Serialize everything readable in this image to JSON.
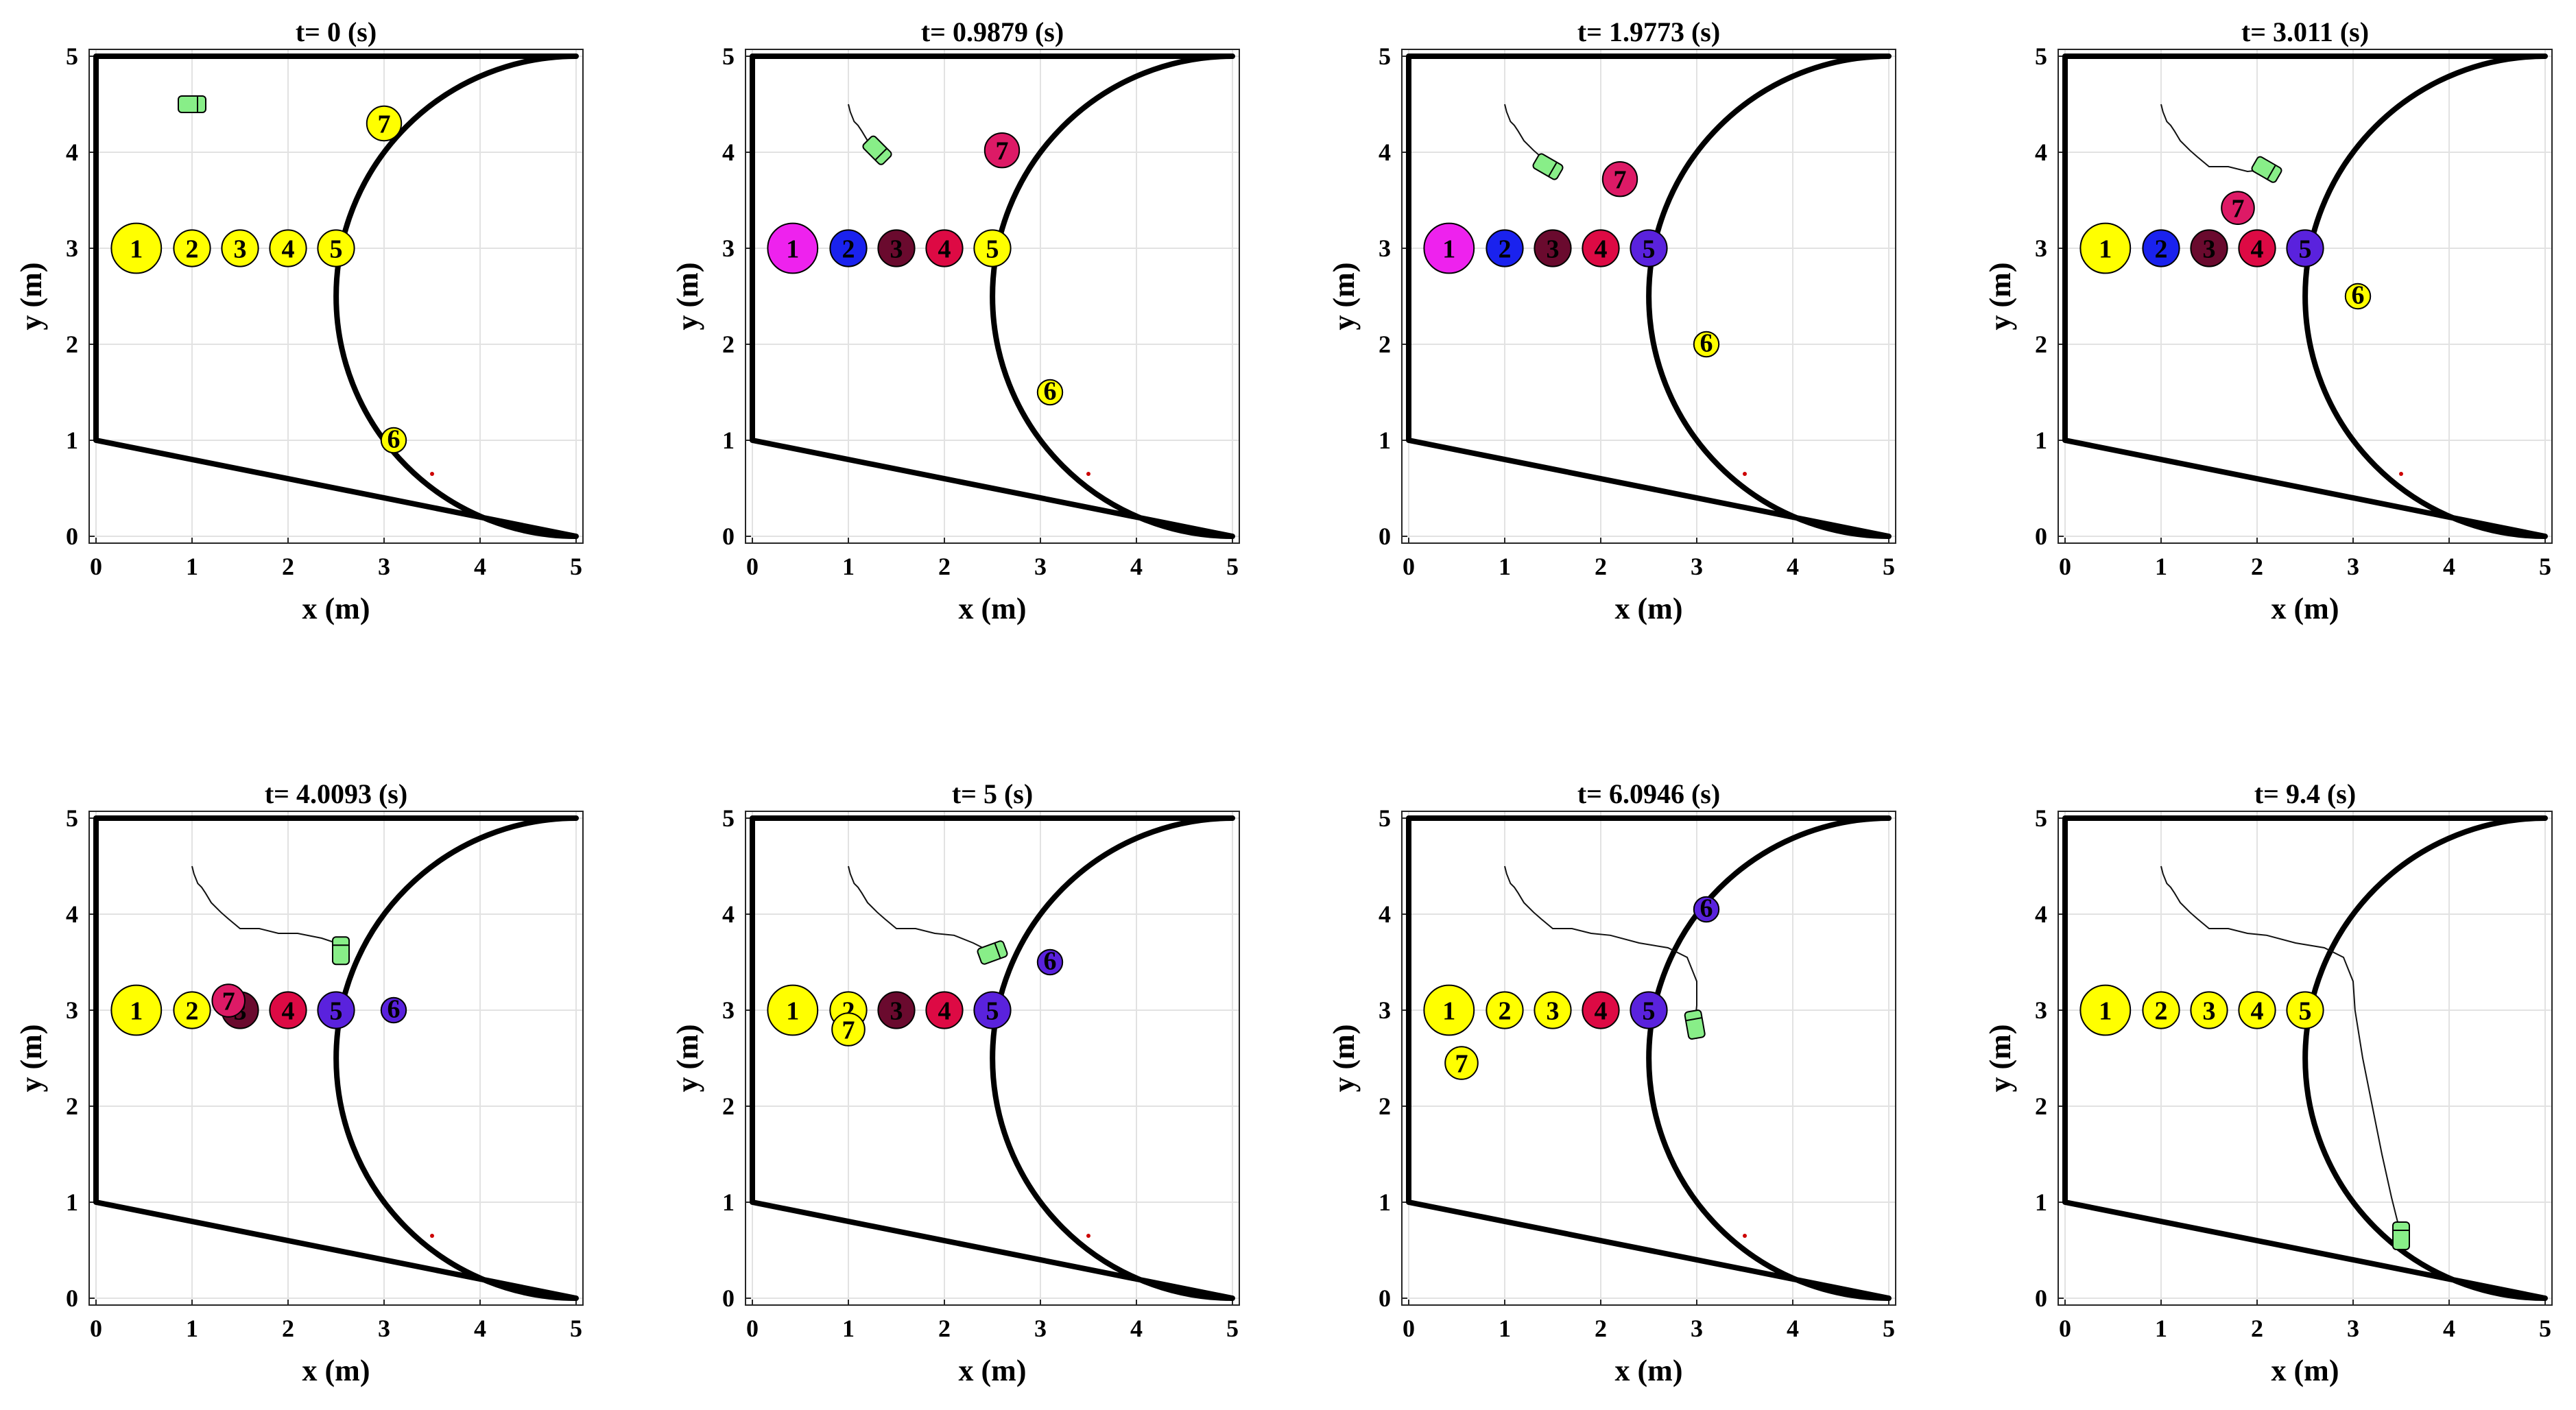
{
  "chart_data": [
    {
      "type": "scatter",
      "title": "t= 0 (s)",
      "xlabel": "x (m)",
      "ylabel": "y (m)",
      "xlim": [
        0,
        5
      ],
      "ylim": [
        0,
        5
      ],
      "xticks": [
        0,
        1,
        2,
        3,
        4,
        5
      ],
      "yticks": [
        0,
        1,
        2,
        3,
        4,
        5
      ],
      "grid": true,
      "objects": [
        {
          "label": "1",
          "x": 0.42,
          "y": 3.0,
          "r": 0.26,
          "color": "#ffff00"
        },
        {
          "label": "2",
          "x": 1.0,
          "y": 3.0,
          "r": 0.19,
          "color": "#ffff00"
        },
        {
          "label": "3",
          "x": 1.5,
          "y": 3.0,
          "r": 0.19,
          "color": "#ffff00"
        },
        {
          "label": "4",
          "x": 2.0,
          "y": 3.0,
          "r": 0.19,
          "color": "#ffff00"
        },
        {
          "label": "5",
          "x": 2.5,
          "y": 3.0,
          "r": 0.19,
          "color": "#ffff00"
        },
        {
          "label": "6",
          "x": 3.1,
          "y": 1.0,
          "r": 0.13,
          "color": "#ffff00"
        },
        {
          "label": "7",
          "x": 3.0,
          "y": 4.3,
          "r": 0.18,
          "color": "#ffff00"
        }
      ],
      "robot": {
        "x": 1.0,
        "y": 4.5,
        "angle": 0
      },
      "trajectory": []
    },
    {
      "type": "scatter",
      "title": "t= 0.9879 (s)",
      "xlabel": "x (m)",
      "ylabel": "y (m)",
      "xlim": [
        0,
        5
      ],
      "ylim": [
        0,
        5
      ],
      "xticks": [
        0,
        1,
        2,
        3,
        4,
        5
      ],
      "yticks": [
        0,
        1,
        2,
        3,
        4,
        5
      ],
      "grid": true,
      "objects": [
        {
          "label": "1",
          "x": 0.42,
          "y": 3.0,
          "r": 0.26,
          "color": "#ee22ee"
        },
        {
          "label": "2",
          "x": 1.0,
          "y": 3.0,
          "r": 0.19,
          "color": "#1a22ee"
        },
        {
          "label": "3",
          "x": 1.5,
          "y": 3.0,
          "r": 0.19,
          "color": "#6a0a2e"
        },
        {
          "label": "4",
          "x": 2.0,
          "y": 3.0,
          "r": 0.19,
          "color": "#dd0a44"
        },
        {
          "label": "5",
          "x": 2.5,
          "y": 3.0,
          "r": 0.19,
          "color": "#ffff00"
        },
        {
          "label": "6",
          "x": 3.1,
          "y": 1.5,
          "r": 0.13,
          "color": "#ffff00"
        },
        {
          "label": "7",
          "x": 2.6,
          "y": 4.02,
          "r": 0.18,
          "color": "#dd1a66"
        }
      ],
      "robot": {
        "x": 1.3,
        "y": 4.02,
        "angle": -45
      },
      "trajectory": [
        [
          1.0,
          4.5
        ],
        [
          1.02,
          4.42
        ],
        [
          1.06,
          4.32
        ],
        [
          1.1,
          4.28
        ],
        [
          1.14,
          4.22
        ],
        [
          1.2,
          4.12
        ],
        [
          1.3,
          4.02
        ]
      ]
    },
    {
      "type": "scatter",
      "title": "t= 1.9773 (s)",
      "xlabel": "x (m)",
      "ylabel": "y (m)",
      "xlim": [
        0,
        5
      ],
      "ylim": [
        0,
        5
      ],
      "xticks": [
        0,
        1,
        2,
        3,
        4,
        5
      ],
      "yticks": [
        0,
        1,
        2,
        3,
        4,
        5
      ],
      "grid": true,
      "objects": [
        {
          "label": "1",
          "x": 0.42,
          "y": 3.0,
          "r": 0.26,
          "color": "#ee22ee"
        },
        {
          "label": "2",
          "x": 1.0,
          "y": 3.0,
          "r": 0.19,
          "color": "#1a22ee"
        },
        {
          "label": "3",
          "x": 1.5,
          "y": 3.0,
          "r": 0.19,
          "color": "#6a0a2e"
        },
        {
          "label": "4",
          "x": 2.0,
          "y": 3.0,
          "r": 0.19,
          "color": "#dd0a44"
        },
        {
          "label": "5",
          "x": 2.5,
          "y": 3.0,
          "r": 0.19,
          "color": "#5a22dd"
        },
        {
          "label": "6",
          "x": 3.1,
          "y": 2.0,
          "r": 0.13,
          "color": "#ffff00"
        },
        {
          "label": "7",
          "x": 2.2,
          "y": 3.72,
          "r": 0.18,
          "color": "#dd1a66"
        }
      ],
      "robot": {
        "x": 1.45,
        "y": 3.85,
        "angle": -30
      },
      "trajectory": [
        [
          1.0,
          4.5
        ],
        [
          1.02,
          4.42
        ],
        [
          1.06,
          4.32
        ],
        [
          1.1,
          4.28
        ],
        [
          1.14,
          4.22
        ],
        [
          1.2,
          4.12
        ],
        [
          1.3,
          4.02
        ],
        [
          1.38,
          3.95
        ],
        [
          1.45,
          3.85
        ]
      ]
    },
    {
      "type": "scatter",
      "title": "t= 3.011 (s)",
      "xlabel": "x (m)",
      "ylabel": "y (m)",
      "xlim": [
        0,
        5
      ],
      "ylim": [
        0,
        5
      ],
      "xticks": [
        0,
        1,
        2,
        3,
        4,
        5
      ],
      "yticks": [
        0,
        1,
        2,
        3,
        4,
        5
      ],
      "grid": true,
      "objects": [
        {
          "label": "1",
          "x": 0.42,
          "y": 3.0,
          "r": 0.26,
          "color": "#ffff00"
        },
        {
          "label": "2",
          "x": 1.0,
          "y": 3.0,
          "r": 0.19,
          "color": "#1a22ee"
        },
        {
          "label": "3",
          "x": 1.5,
          "y": 3.0,
          "r": 0.19,
          "color": "#6a0a2e"
        },
        {
          "label": "4",
          "x": 2.0,
          "y": 3.0,
          "r": 0.19,
          "color": "#dd0a44"
        },
        {
          "label": "5",
          "x": 2.5,
          "y": 3.0,
          "r": 0.19,
          "color": "#5a22dd"
        },
        {
          "label": "6",
          "x": 3.05,
          "y": 2.5,
          "r": 0.13,
          "color": "#ffff00"
        },
        {
          "label": "7",
          "x": 1.8,
          "y": 3.42,
          "r": 0.17,
          "color": "#dd1a66"
        }
      ],
      "robot": {
        "x": 2.1,
        "y": 3.82,
        "angle": -30
      },
      "trajectory": [
        [
          1.0,
          4.5
        ],
        [
          1.02,
          4.42
        ],
        [
          1.06,
          4.32
        ],
        [
          1.1,
          4.28
        ],
        [
          1.14,
          4.22
        ],
        [
          1.2,
          4.12
        ],
        [
          1.3,
          4.02
        ],
        [
          1.38,
          3.95
        ],
        [
          1.5,
          3.85
        ],
        [
          1.7,
          3.85
        ],
        [
          1.9,
          3.8
        ],
        [
          2.1,
          3.82
        ]
      ]
    },
    {
      "type": "scatter",
      "title": "t= 4.0093 (s)",
      "xlabel": "x (m)",
      "ylabel": "y (m)",
      "xlim": [
        0,
        5
      ],
      "ylim": [
        0,
        5
      ],
      "xticks": [
        0,
        1,
        2,
        3,
        4,
        5
      ],
      "yticks": [
        0,
        1,
        2,
        3,
        4,
        5
      ],
      "grid": true,
      "objects": [
        {
          "label": "1",
          "x": 0.42,
          "y": 3.0,
          "r": 0.26,
          "color": "#ffff00"
        },
        {
          "label": "2",
          "x": 1.0,
          "y": 3.0,
          "r": 0.19,
          "color": "#ffff00"
        },
        {
          "label": "3",
          "x": 1.5,
          "y": 3.0,
          "r": 0.19,
          "color": "#6a0a2e"
        },
        {
          "label": "4",
          "x": 2.0,
          "y": 3.0,
          "r": 0.19,
          "color": "#dd0a44"
        },
        {
          "label": "5",
          "x": 2.5,
          "y": 3.0,
          "r": 0.19,
          "color": "#5a22dd"
        },
        {
          "label": "6",
          "x": 3.1,
          "y": 3.0,
          "r": 0.13,
          "color": "#5a22dd"
        },
        {
          "label": "7",
          "x": 1.38,
          "y": 3.1,
          "r": 0.17,
          "color": "#dd1a66"
        }
      ],
      "robot": {
        "x": 2.55,
        "y": 3.62,
        "angle": 90
      },
      "trajectory": [
        [
          1.0,
          4.5
        ],
        [
          1.02,
          4.42
        ],
        [
          1.06,
          4.32
        ],
        [
          1.1,
          4.28
        ],
        [
          1.14,
          4.22
        ],
        [
          1.2,
          4.12
        ],
        [
          1.3,
          4.02
        ],
        [
          1.38,
          3.95
        ],
        [
          1.5,
          3.85
        ],
        [
          1.7,
          3.85
        ],
        [
          1.9,
          3.8
        ],
        [
          2.1,
          3.8
        ],
        [
          2.35,
          3.75
        ],
        [
          2.5,
          3.7
        ],
        [
          2.55,
          3.62
        ]
      ]
    },
    {
      "type": "scatter",
      "title": "t= 5 (s)",
      "xlabel": "x (m)",
      "ylabel": "y (m)",
      "xlim": [
        0,
        5
      ],
      "ylim": [
        0,
        5
      ],
      "xticks": [
        0,
        1,
        2,
        3,
        4,
        5
      ],
      "yticks": [
        0,
        1,
        2,
        3,
        4,
        5
      ],
      "grid": true,
      "objects": [
        {
          "label": "1",
          "x": 0.42,
          "y": 3.0,
          "r": 0.26,
          "color": "#ffff00"
        },
        {
          "label": "2",
          "x": 1.0,
          "y": 3.0,
          "r": 0.19,
          "color": "#ffff00"
        },
        {
          "label": "3",
          "x": 1.5,
          "y": 3.0,
          "r": 0.19,
          "color": "#6a0a2e"
        },
        {
          "label": "4",
          "x": 2.0,
          "y": 3.0,
          "r": 0.19,
          "color": "#dd0a44"
        },
        {
          "label": "5",
          "x": 2.5,
          "y": 3.0,
          "r": 0.19,
          "color": "#5a22dd"
        },
        {
          "label": "6",
          "x": 3.1,
          "y": 3.5,
          "r": 0.13,
          "color": "#5a22dd"
        },
        {
          "label": "7",
          "x": 1.0,
          "y": 2.8,
          "r": 0.17,
          "color": "#ffff00"
        }
      ],
      "robot": {
        "x": 2.5,
        "y": 3.6,
        "angle": 20
      },
      "trajectory": [
        [
          1.0,
          4.5
        ],
        [
          1.02,
          4.42
        ],
        [
          1.06,
          4.32
        ],
        [
          1.1,
          4.28
        ],
        [
          1.14,
          4.22
        ],
        [
          1.2,
          4.12
        ],
        [
          1.3,
          4.02
        ],
        [
          1.38,
          3.95
        ],
        [
          1.5,
          3.85
        ],
        [
          1.7,
          3.85
        ],
        [
          1.9,
          3.8
        ],
        [
          2.1,
          3.78
        ],
        [
          2.3,
          3.7
        ],
        [
          2.5,
          3.6
        ]
      ]
    },
    {
      "type": "scatter",
      "title": "t= 6.0946 (s)",
      "xlabel": "x (m)",
      "ylabel": "y (m)",
      "xlim": [
        0,
        5
      ],
      "ylim": [
        0,
        5
      ],
      "xticks": [
        0,
        1,
        2,
        3,
        4,
        5
      ],
      "yticks": [
        0,
        1,
        2,
        3,
        4,
        5
      ],
      "grid": true,
      "objects": [
        {
          "label": "1",
          "x": 0.42,
          "y": 3.0,
          "r": 0.26,
          "color": "#ffff00"
        },
        {
          "label": "2",
          "x": 1.0,
          "y": 3.0,
          "r": 0.19,
          "color": "#ffff00"
        },
        {
          "label": "3",
          "x": 1.5,
          "y": 3.0,
          "r": 0.19,
          "color": "#ffff00"
        },
        {
          "label": "4",
          "x": 2.0,
          "y": 3.0,
          "r": 0.19,
          "color": "#dd0a44"
        },
        {
          "label": "5",
          "x": 2.5,
          "y": 3.0,
          "r": 0.19,
          "color": "#5a22dd"
        },
        {
          "label": "6",
          "x": 3.1,
          "y": 4.05,
          "r": 0.13,
          "color": "#5a22dd"
        },
        {
          "label": "7",
          "x": 0.55,
          "y": 2.45,
          "r": 0.17,
          "color": "#ffff00"
        }
      ],
      "robot": {
        "x": 2.98,
        "y": 2.85,
        "angle": 100
      },
      "trajectory": [
        [
          1.0,
          4.5
        ],
        [
          1.02,
          4.42
        ],
        [
          1.06,
          4.32
        ],
        [
          1.1,
          4.28
        ],
        [
          1.14,
          4.22
        ],
        [
          1.2,
          4.12
        ],
        [
          1.3,
          4.02
        ],
        [
          1.38,
          3.95
        ],
        [
          1.5,
          3.85
        ],
        [
          1.7,
          3.85
        ],
        [
          1.9,
          3.8
        ],
        [
          2.1,
          3.78
        ],
        [
          2.4,
          3.7
        ],
        [
          2.7,
          3.65
        ],
        [
          2.9,
          3.55
        ],
        [
          3.0,
          3.3
        ],
        [
          3.0,
          3.05
        ],
        [
          2.98,
          2.85
        ]
      ]
    },
    {
      "type": "scatter",
      "title": "t= 9.4 (s)",
      "xlabel": "x (m)",
      "ylabel": "y (m)",
      "xlim": [
        0,
        5
      ],
      "ylim": [
        0,
        5
      ],
      "xticks": [
        0,
        1,
        2,
        3,
        4,
        5
      ],
      "yticks": [
        0,
        1,
        2,
        3,
        4,
        5
      ],
      "grid": true,
      "objects": [
        {
          "label": "1",
          "x": 0.42,
          "y": 3.0,
          "r": 0.26,
          "color": "#ffff00"
        },
        {
          "label": "2",
          "x": 1.0,
          "y": 3.0,
          "r": 0.19,
          "color": "#ffff00"
        },
        {
          "label": "3",
          "x": 1.5,
          "y": 3.0,
          "r": 0.19,
          "color": "#ffff00"
        },
        {
          "label": "4",
          "x": 2.0,
          "y": 3.0,
          "r": 0.19,
          "color": "#ffff00"
        },
        {
          "label": "5",
          "x": 2.5,
          "y": 3.0,
          "r": 0.19,
          "color": "#ffff00"
        }
      ],
      "robot": {
        "x": 3.5,
        "y": 0.65,
        "angle": 90
      },
      "trajectory": [
        [
          1.0,
          4.5
        ],
        [
          1.02,
          4.42
        ],
        [
          1.06,
          4.32
        ],
        [
          1.1,
          4.28
        ],
        [
          1.14,
          4.22
        ],
        [
          1.2,
          4.12
        ],
        [
          1.3,
          4.02
        ],
        [
          1.38,
          3.95
        ],
        [
          1.5,
          3.85
        ],
        [
          1.7,
          3.85
        ],
        [
          1.9,
          3.8
        ],
        [
          2.1,
          3.78
        ],
        [
          2.4,
          3.7
        ],
        [
          2.7,
          3.65
        ],
        [
          2.9,
          3.55
        ],
        [
          3.0,
          3.3
        ],
        [
          3.02,
          3.0
        ],
        [
          3.1,
          2.5
        ],
        [
          3.2,
          2.0
        ],
        [
          3.3,
          1.5
        ],
        [
          3.4,
          1.05
        ],
        [
          3.5,
          0.65
        ]
      ]
    }
  ],
  "colors": {
    "robot_fill": "#88ee88",
    "target_marker": "#cc0000",
    "boundary": "#000000",
    "grid": "#e2e2e2"
  }
}
